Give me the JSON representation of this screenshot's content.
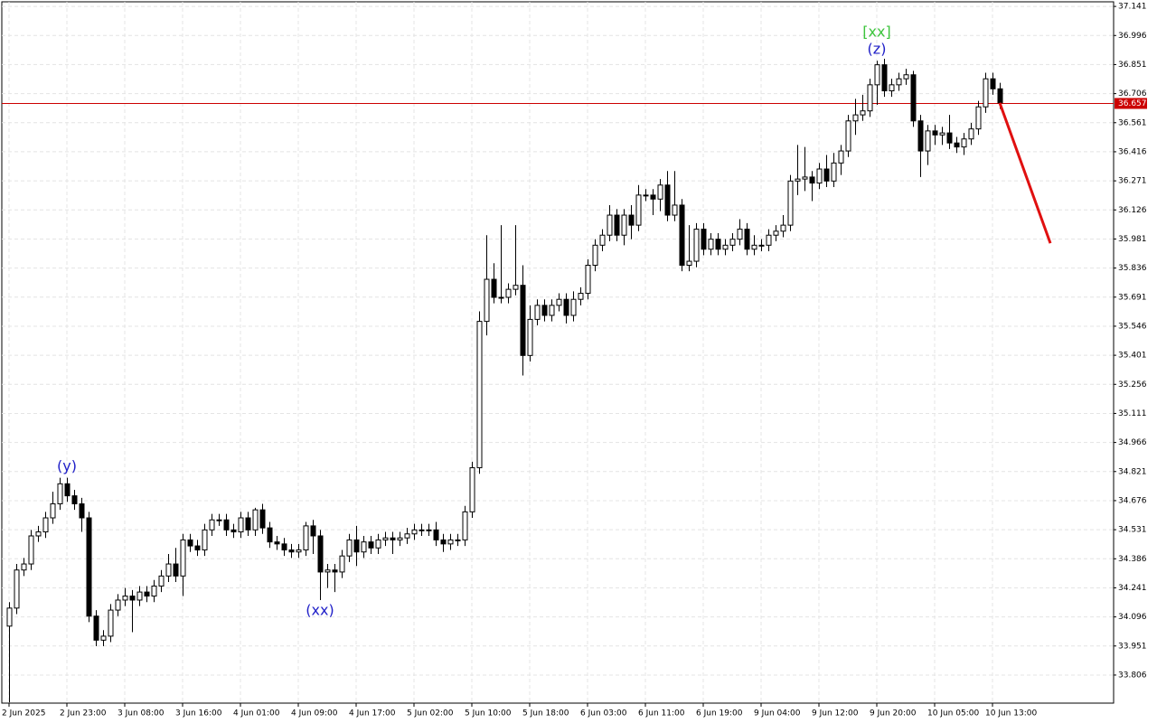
{
  "chart_data": {
    "type": "candlestick",
    "x": [
      0,
      1,
      2,
      3,
      4,
      5,
      6,
      7,
      8,
      9,
      10,
      11,
      12,
      13,
      14,
      15,
      16,
      17,
      18,
      19,
      20,
      21,
      22,
      23,
      24,
      25,
      26,
      27,
      28,
      29,
      30,
      31,
      32,
      33,
      34,
      35,
      36,
      37,
      38,
      39,
      40,
      41,
      42,
      43,
      44,
      45,
      46,
      47,
      48,
      49,
      50,
      51,
      52,
      53,
      54,
      55,
      56,
      57,
      58,
      59,
      60,
      61,
      62,
      63,
      64,
      65,
      66,
      67,
      68,
      69,
      70,
      71,
      72,
      73,
      74,
      75,
      76,
      77,
      78,
      79,
      80,
      81,
      82,
      83,
      84,
      85,
      86,
      87,
      88,
      89,
      90,
      91,
      92,
      93,
      94,
      95,
      96,
      97,
      98,
      99,
      100,
      101,
      102,
      103,
      104,
      105,
      106,
      107,
      108,
      109,
      110,
      111,
      112,
      113,
      114,
      115,
      116,
      117,
      118,
      119,
      120,
      121,
      122,
      123,
      124,
      125,
      126,
      127,
      128,
      129,
      130,
      131,
      132,
      133,
      134,
      135,
      136,
      137
    ],
    "candles": {
      "open": [
        34.05,
        34.14,
        34.33,
        34.36,
        34.5,
        34.52,
        34.59,
        34.66,
        34.76,
        34.7,
        34.66,
        34.59,
        34.1,
        33.98,
        34.0,
        34.13,
        34.18,
        34.2,
        34.18,
        34.22,
        34.2,
        34.25,
        34.3,
        34.36,
        34.3,
        34.48,
        34.45,
        34.43,
        34.53,
        34.58,
        34.58,
        34.53,
        34.52,
        34.59,
        34.53,
        34.63,
        34.54,
        34.47,
        34.46,
        34.43,
        34.42,
        34.43,
        34.55,
        34.5,
        34.32,
        34.33,
        34.32,
        34.4,
        34.48,
        34.42,
        34.47,
        34.44,
        34.48,
        34.49,
        34.48,
        34.49,
        34.51,
        34.53,
        34.53,
        34.53,
        34.48,
        34.46,
        34.48,
        34.48,
        34.62,
        34.84,
        35.57,
        35.78,
        35.69,
        35.69,
        35.73,
        35.75,
        35.4,
        35.58,
        35.65,
        35.6,
        35.65,
        35.68,
        35.6,
        35.68,
        35.71,
        35.85,
        35.95,
        36.0,
        36.1,
        36.0,
        36.1,
        36.05,
        36.2,
        36.2,
        36.18,
        36.25,
        36.1,
        36.15,
        35.85,
        35.87,
        36.03,
        35.93,
        35.98,
        35.93,
        35.95,
        35.98,
        36.03,
        35.93,
        35.95,
        35.95,
        36.0,
        36.02,
        36.05,
        36.27,
        36.28,
        36.29,
        36.26,
        36.33,
        36.27,
        36.36,
        36.42,
        36.57,
        36.6,
        36.62,
        36.75,
        36.85,
        36.72,
        36.75,
        36.78,
        36.8,
        36.57,
        36.42,
        36.52,
        36.5,
        36.51,
        36.46,
        36.44,
        36.48,
        36.53,
        36.64,
        36.78,
        36.73
      ],
      "high": [
        34.17,
        34.36,
        34.39,
        34.53,
        34.55,
        34.62,
        34.72,
        34.79,
        34.79,
        34.73,
        34.69,
        34.62,
        34.13,
        34.03,
        34.16,
        34.21,
        34.24,
        34.23,
        34.25,
        34.25,
        34.28,
        34.33,
        34.41,
        34.44,
        34.51,
        34.51,
        34.48,
        34.56,
        34.61,
        34.61,
        34.61,
        34.56,
        34.62,
        34.62,
        34.64,
        34.66,
        34.57,
        34.5,
        34.49,
        34.46,
        34.46,
        34.57,
        34.58,
        34.53,
        34.36,
        34.36,
        34.43,
        34.51,
        34.55,
        34.5,
        34.5,
        34.51,
        34.52,
        34.52,
        34.52,
        34.54,
        34.56,
        34.56,
        34.56,
        34.57,
        34.51,
        34.51,
        34.51,
        34.65,
        34.87,
        35.62,
        36.0,
        35.86,
        36.05,
        35.76,
        36.05,
        35.85,
        35.65,
        35.68,
        35.68,
        35.68,
        35.71,
        35.71,
        35.72,
        35.74,
        35.88,
        35.98,
        36.03,
        36.15,
        36.13,
        36.13,
        36.15,
        36.25,
        36.23,
        36.23,
        36.28,
        36.32,
        36.32,
        36.18,
        36.05,
        36.06,
        36.06,
        36.01,
        36.01,
        35.98,
        36.01,
        36.08,
        36.06,
        36.0,
        35.98,
        36.03,
        36.05,
        36.1,
        36.3,
        36.45,
        36.44,
        36.32,
        36.36,
        36.4,
        36.41,
        36.45,
        36.6,
        36.68,
        36.7,
        36.78,
        36.87,
        36.88,
        36.78,
        36.81,
        36.83,
        36.82,
        36.6,
        36.55,
        36.55,
        36.54,
        36.6,
        36.49,
        36.51,
        36.56,
        36.67,
        36.81,
        36.81,
        36.76
      ],
      "low": [
        33.67,
        34.11,
        34.3,
        34.33,
        34.47,
        34.49,
        34.56,
        34.63,
        34.67,
        34.63,
        34.52,
        34.07,
        33.95,
        33.95,
        33.97,
        34.1,
        34.15,
        34.02,
        34.15,
        34.17,
        34.17,
        34.22,
        34.27,
        34.27,
        34.2,
        34.42,
        34.4,
        34.4,
        34.5,
        34.55,
        34.5,
        34.49,
        34.49,
        34.5,
        34.5,
        34.51,
        34.44,
        34.43,
        34.4,
        34.39,
        34.39,
        34.4,
        34.41,
        34.18,
        34.24,
        34.22,
        34.29,
        34.37,
        34.35,
        34.39,
        34.41,
        34.41,
        34.45,
        34.41,
        34.45,
        34.46,
        34.48,
        34.5,
        34.5,
        34.45,
        34.42,
        34.43,
        34.45,
        34.45,
        34.59,
        34.81,
        35.5,
        35.66,
        35.66,
        35.66,
        35.7,
        35.3,
        35.37,
        35.55,
        35.57,
        35.57,
        35.62,
        35.56,
        35.57,
        35.65,
        35.68,
        35.82,
        35.92,
        35.97,
        35.97,
        35.95,
        35.98,
        36.02,
        36.17,
        36.1,
        36.12,
        36.07,
        36.07,
        35.82,
        35.82,
        35.84,
        35.9,
        35.9,
        35.9,
        35.9,
        35.92,
        35.95,
        35.9,
        35.9,
        35.92,
        35.92,
        35.97,
        35.99,
        36.02,
        36.2,
        36.22,
        36.17,
        36.23,
        36.24,
        36.24,
        36.3,
        36.39,
        36.5,
        36.57,
        36.59,
        36.65,
        36.69,
        36.69,
        36.72,
        36.75,
        36.54,
        36.29,
        36.35,
        36.45,
        36.45,
        36.43,
        36.41,
        36.4,
        36.45,
        36.5,
        36.61,
        36.7,
        36.63
      ],
      "close": [
        34.14,
        34.33,
        34.36,
        34.5,
        34.52,
        34.59,
        34.66,
        34.76,
        34.7,
        34.66,
        34.59,
        34.1,
        33.98,
        34.0,
        34.13,
        34.18,
        34.2,
        34.18,
        34.22,
        34.2,
        34.25,
        34.3,
        34.36,
        34.3,
        34.48,
        34.45,
        34.43,
        34.53,
        34.58,
        34.58,
        34.53,
        34.52,
        34.59,
        34.53,
        34.63,
        34.54,
        34.47,
        34.46,
        34.43,
        34.42,
        34.43,
        34.55,
        34.5,
        34.32,
        34.33,
        34.32,
        34.4,
        34.48,
        34.42,
        34.47,
        34.44,
        34.48,
        34.49,
        34.48,
        34.49,
        34.51,
        34.53,
        34.53,
        34.53,
        34.48,
        34.46,
        34.48,
        34.48,
        34.62,
        34.84,
        35.57,
        35.78,
        35.69,
        35.69,
        35.73,
        35.75,
        35.4,
        35.58,
        35.65,
        35.6,
        35.65,
        35.68,
        35.6,
        35.68,
        35.71,
        35.85,
        35.95,
        36.0,
        36.1,
        36.0,
        36.1,
        36.05,
        36.2,
        36.2,
        36.18,
        36.25,
        36.1,
        36.15,
        35.85,
        35.87,
        36.03,
        35.93,
        35.98,
        35.93,
        35.95,
        35.98,
        36.03,
        35.93,
        35.95,
        35.95,
        36.0,
        36.02,
        36.05,
        36.27,
        36.28,
        36.29,
        36.26,
        36.33,
        36.27,
        36.36,
        36.42,
        36.57,
        36.6,
        36.62,
        36.75,
        36.85,
        36.72,
        36.75,
        36.78,
        36.8,
        36.57,
        36.42,
        36.52,
        36.5,
        36.51,
        36.46,
        36.44,
        36.48,
        36.53,
        36.64,
        36.78,
        36.73,
        36.66
      ]
    },
    "xlim": [
      -1,
      152.75
    ],
    "ylim": [
      33.666,
      37.164
    ],
    "yticks": [
      37.141,
      36.996,
      36.851,
      36.706,
      36.561,
      36.416,
      36.271,
      36.126,
      35.981,
      35.836,
      35.691,
      35.546,
      35.401,
      35.256,
      35.111,
      34.966,
      34.821,
      34.676,
      34.531,
      34.386,
      34.241,
      34.096,
      33.951,
      33.806
    ],
    "xticks": [
      {
        "value": 0,
        "label": "2 Jun 2025"
      },
      {
        "value": 8,
        "label": "2 Jun 23:00"
      },
      {
        "value": 16,
        "label": "3 Jun 08:00"
      },
      {
        "value": 24,
        "label": "3 Jun 16:00"
      },
      {
        "value": 32,
        "label": "4 Jun 01:00"
      },
      {
        "value": 40,
        "label": "4 Jun 09:00"
      },
      {
        "value": 48,
        "label": "4 Jun 17:00"
      },
      {
        "value": 56,
        "label": "5 Jun 02:00"
      },
      {
        "value": 64,
        "label": "5 Jun 10:00"
      },
      {
        "value": 72,
        "label": "5 Jun 18:00"
      },
      {
        "value": 80,
        "label": "6 Jun 03:00"
      },
      {
        "value": 88,
        "label": "6 Jun 11:00"
      },
      {
        "value": 96,
        "label": "6 Jun 19:00"
      },
      {
        "value": 104,
        "label": "9 Jun 04:00"
      },
      {
        "value": 112,
        "label": "9 Jun 12:00"
      },
      {
        "value": 120,
        "label": "9 Jun 20:00"
      },
      {
        "value": 128,
        "label": "10 Jun 05:00"
      },
      {
        "value": 136,
        "label": "10 Jun 13:00"
      }
    ],
    "grid": true,
    "price_line": {
      "value": 36.657,
      "color": "#cc0000"
    },
    "trendline": {
      "x": [
        137,
        144
      ],
      "values": [
        36.66,
        35.96
      ],
      "color": "#e01010"
    },
    "annotations": [
      {
        "text": "(y)",
        "x": 8,
        "position": "above",
        "color": "#2020c8"
      },
      {
        "text": "(xx)",
        "x": 43,
        "position": "below",
        "color": "#2020c8"
      },
      {
        "text": "(z)",
        "x": 120,
        "position": "above",
        "color": "#2020c8"
      },
      {
        "text": "[xx]",
        "x": 120,
        "position": "above",
        "color": "#3cc43c"
      }
    ]
  }
}
